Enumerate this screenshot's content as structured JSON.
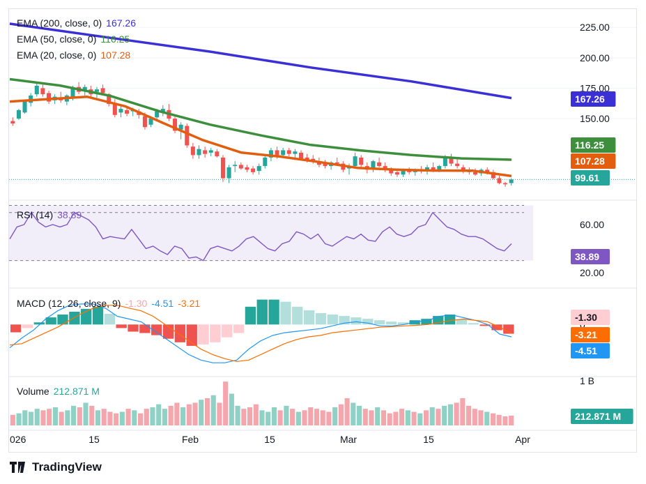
{
  "colors": {
    "ema200": "#3b2fd6",
    "ema50": "#3d8f3d",
    "ema20": "#e35d0e",
    "up": "#26a69a",
    "down": "#ef5350",
    "up_vol": "#8fd1c4",
    "down_vol": "#f4a6ad",
    "macd_line": "#2962ff",
    "signal_line": "#ff6d00",
    "rsi_line": "#7e57c2",
    "rsi_band": "#ede7f6",
    "price_line": "#26a69a",
    "grid": "#f0f3fa"
  },
  "price_panel": {
    "ema200_label": "EMA (200, close, 0)",
    "ema200_value": "167.26",
    "ema50_label": "EMA (50, close, 0)",
    "ema50_value": "116.25",
    "ema20_label": "EMA (20, close, 0)",
    "ema20_value": "107.28",
    "tag_ema200": "167.26",
    "tag_ema50": "116.25",
    "tag_ema20": "107.28",
    "tag_price": "99.61"
  },
  "rsi_panel": {
    "label": "RSI (14)",
    "value": "38.89",
    "tag": "38.89"
  },
  "macd_panel": {
    "label": "MACD (12, 26, close, 9)",
    "hist_value": "-1.30",
    "macd_value": "-4.51",
    "signal_value": "-3.21",
    "tag_hist": "-1.30",
    "tag_signal": "-3.21",
    "tag_macd": "-4.51",
    "axis_zero": "0"
  },
  "volume_panel": {
    "label": "Volume",
    "value": "212.871 M",
    "tag": "212.871 M",
    "axis_top": "1 B"
  },
  "time_axis": [
    "026",
    "15",
    "Feb",
    "15",
    "Mar",
    "15",
    "Apr"
  ],
  "brand": "TradingView",
  "chart_data": {
    "type": "candlestick",
    "price_axis": {
      "ticks": [
        "225.00",
        "200.00",
        "175.00",
        "150.00"
      ],
      "ylim": [
        87,
        236
      ]
    },
    "rsi_axis": {
      "ticks": [
        "60.00",
        "20.00"
      ],
      "ylim": [
        10,
        78
      ],
      "band": [
        30,
        70
      ]
    },
    "ema200": [
      228.0,
      216.4,
      205.0,
      192.0,
      180.6,
      166.9
    ],
    "ema50": [
      182.4,
      177.2,
      168.7,
      155.8,
      145.0,
      136.2,
      128.4,
      123.8,
      120.1,
      117.3,
      116.2
    ],
    "ema20": [
      164.0,
      166.0,
      168.0,
      160.0,
      146.0,
      132.4,
      122.1,
      118.8,
      114.4,
      109.5,
      108.1,
      107.3,
      107.2,
      102.8
    ],
    "candles": [
      {
        "o": 148,
        "h": 151,
        "l": 144,
        "c": 146
      },
      {
        "o": 150,
        "h": 158,
        "l": 149,
        "c": 157
      },
      {
        "o": 155,
        "h": 165,
        "l": 154,
        "c": 164
      },
      {
        "o": 163,
        "h": 171,
        "l": 160,
        "c": 169
      },
      {
        "o": 170,
        "h": 180,
        "l": 168,
        "c": 177
      },
      {
        "o": 175,
        "h": 178,
        "l": 168,
        "c": 170
      },
      {
        "o": 171,
        "h": 173,
        "l": 162,
        "c": 164
      },
      {
        "o": 165,
        "h": 170,
        "l": 162,
        "c": 168
      },
      {
        "o": 167,
        "h": 172,
        "l": 163,
        "c": 165
      },
      {
        "o": 164,
        "h": 170,
        "l": 161,
        "c": 169
      },
      {
        "o": 168,
        "h": 177,
        "l": 165,
        "c": 175
      },
      {
        "o": 176,
        "h": 180,
        "l": 170,
        "c": 172
      },
      {
        "o": 173,
        "h": 178,
        "l": 169,
        "c": 176
      },
      {
        "o": 174,
        "h": 177,
        "l": 168,
        "c": 170
      },
      {
        "o": 172,
        "h": 176,
        "l": 167,
        "c": 174
      },
      {
        "o": 175,
        "h": 178,
        "l": 169,
        "c": 171
      },
      {
        "o": 170,
        "h": 171,
        "l": 160,
        "c": 162
      },
      {
        "o": 163,
        "h": 166,
        "l": 151,
        "c": 153
      },
      {
        "o": 155,
        "h": 160,
        "l": 151,
        "c": 158
      },
      {
        "o": 157,
        "h": 160,
        "l": 152,
        "c": 154
      },
      {
        "o": 156,
        "h": 159,
        "l": 152,
        "c": 157
      },
      {
        "o": 156,
        "h": 158,
        "l": 150,
        "c": 153
      },
      {
        "o": 152,
        "h": 155,
        "l": 141,
        "c": 143
      },
      {
        "o": 145,
        "h": 152,
        "l": 143,
        "c": 150
      },
      {
        "o": 151,
        "h": 158,
        "l": 148,
        "c": 156
      },
      {
        "o": 155,
        "h": 161,
        "l": 152,
        "c": 158
      },
      {
        "o": 157,
        "h": 162,
        "l": 148,
        "c": 150
      },
      {
        "o": 150,
        "h": 152,
        "l": 138,
        "c": 140
      },
      {
        "o": 141,
        "h": 147,
        "l": 133,
        "c": 145
      },
      {
        "o": 144,
        "h": 146,
        "l": 126,
        "c": 128
      },
      {
        "o": 127,
        "h": 130,
        "l": 117,
        "c": 120
      },
      {
        "o": 120,
        "h": 128,
        "l": 117,
        "c": 125
      },
      {
        "o": 124,
        "h": 127,
        "l": 118,
        "c": 121
      },
      {
        "o": 122,
        "h": 126,
        "l": 119,
        "c": 124
      },
      {
        "o": 123,
        "h": 125,
        "l": 118,
        "c": 119
      },
      {
        "o": 118,
        "h": 120,
        "l": 98,
        "c": 101
      },
      {
        "o": 101,
        "h": 112,
        "l": 97,
        "c": 110
      },
      {
        "o": 111,
        "h": 115,
        "l": 106,
        "c": 112
      },
      {
        "o": 112,
        "h": 114,
        "l": 108,
        "c": 109
      },
      {
        "o": 110,
        "h": 112,
        "l": 106,
        "c": 108
      },
      {
        "o": 109,
        "h": 111,
        "l": 104,
        "c": 106
      },
      {
        "o": 107,
        "h": 113,
        "l": 104,
        "c": 111
      },
      {
        "o": 111,
        "h": 120,
        "l": 109,
        "c": 118
      },
      {
        "o": 118,
        "h": 126,
        "l": 115,
        "c": 124
      },
      {
        "o": 124,
        "h": 127,
        "l": 117,
        "c": 119
      },
      {
        "o": 120,
        "h": 126,
        "l": 118,
        "c": 124
      },
      {
        "o": 124,
        "h": 126,
        "l": 119,
        "c": 121
      },
      {
        "o": 121,
        "h": 125,
        "l": 118,
        "c": 123
      },
      {
        "o": 122,
        "h": 124,
        "l": 116,
        "c": 117
      },
      {
        "o": 118,
        "h": 121,
        "l": 114,
        "c": 116
      },
      {
        "o": 117,
        "h": 120,
        "l": 113,
        "c": 115
      },
      {
        "o": 114,
        "h": 118,
        "l": 110,
        "c": 112
      },
      {
        "o": 113,
        "h": 116,
        "l": 109,
        "c": 111
      },
      {
        "o": 111,
        "h": 115,
        "l": 108,
        "c": 114
      },
      {
        "o": 114,
        "h": 118,
        "l": 111,
        "c": 113
      },
      {
        "o": 113,
        "h": 115,
        "l": 106,
        "c": 108
      },
      {
        "o": 109,
        "h": 113,
        "l": 104,
        "c": 111
      },
      {
        "o": 111,
        "h": 122,
        "l": 109,
        "c": 119
      },
      {
        "o": 118,
        "h": 120,
        "l": 110,
        "c": 112
      },
      {
        "o": 111,
        "h": 114,
        "l": 105,
        "c": 108
      },
      {
        "o": 109,
        "h": 116,
        "l": 106,
        "c": 115
      },
      {
        "o": 114,
        "h": 118,
        "l": 110,
        "c": 111
      },
      {
        "o": 111,
        "h": 114,
        "l": 106,
        "c": 109
      },
      {
        "o": 108,
        "h": 110,
        "l": 103,
        "c": 105
      },
      {
        "o": 106,
        "h": 108,
        "l": 102,
        "c": 104
      },
      {
        "o": 104,
        "h": 109,
        "l": 102,
        "c": 107
      },
      {
        "o": 107,
        "h": 110,
        "l": 104,
        "c": 106
      },
      {
        "o": 106,
        "h": 109,
        "l": 103,
        "c": 108
      },
      {
        "o": 108,
        "h": 111,
        "l": 105,
        "c": 107
      },
      {
        "o": 107,
        "h": 112,
        "l": 104,
        "c": 110
      },
      {
        "o": 110,
        "h": 114,
        "l": 106,
        "c": 108
      },
      {
        "o": 108,
        "h": 112,
        "l": 106,
        "c": 111
      },
      {
        "o": 111,
        "h": 120,
        "l": 109,
        "c": 118
      },
      {
        "o": 118,
        "h": 121,
        "l": 111,
        "c": 113
      },
      {
        "o": 113,
        "h": 117,
        "l": 109,
        "c": 111
      },
      {
        "o": 110,
        "h": 112,
        "l": 105,
        "c": 107
      },
      {
        "o": 107,
        "h": 110,
        "l": 104,
        "c": 106
      },
      {
        "o": 106,
        "h": 109,
        "l": 103,
        "c": 104
      },
      {
        "o": 105,
        "h": 109,
        "l": 103,
        "c": 108
      },
      {
        "o": 108,
        "h": 110,
        "l": 104,
        "c": 105
      },
      {
        "o": 106,
        "h": 108,
        "l": 100,
        "c": 101
      },
      {
        "o": 101,
        "h": 103,
        "l": 96,
        "c": 97
      },
      {
        "o": 97,
        "h": 98,
        "l": 94,
        "c": 96
      },
      {
        "o": 97,
        "h": 101,
        "l": 95,
        "c": 100
      }
    ],
    "rsi": [
      48,
      58,
      60,
      70,
      62,
      58,
      60,
      58,
      60,
      70,
      67,
      64,
      58,
      48,
      50,
      49,
      48,
      56,
      48,
      40,
      42,
      38,
      35,
      42,
      40,
      32,
      33,
      30,
      40,
      42,
      40,
      38,
      42,
      48,
      50,
      45,
      40,
      38,
      44,
      46,
      54,
      52,
      48,
      52,
      44,
      42,
      46,
      50,
      48,
      52,
      47,
      46,
      54,
      58,
      52,
      50,
      52,
      58,
      60,
      70,
      64,
      58,
      56,
      52,
      50,
      50,
      48,
      44,
      40,
      38,
      44
    ],
    "macd": [
      -8.5,
      -5,
      -2,
      2,
      5,
      7,
      7.5,
      7.5,
      6,
      3,
      2,
      1,
      -2,
      -5,
      -8,
      -11,
      -13,
      -14,
      -14,
      -13,
      -9,
      -6,
      -4,
      -3,
      -2.5,
      -2,
      -1.5,
      -0.5,
      0.5,
      1,
      0.5,
      -0.5,
      -0.5,
      0,
      1,
      1.5,
      3,
      3.5,
      2.5,
      1.5,
      0,
      -3.5,
      -4.5
    ],
    "signal": [
      -7.5,
      -7,
      -5,
      -3,
      -1,
      1.5,
      4,
      6,
      7,
      7,
      6,
      5,
      3,
      0,
      -3,
      -6,
      -9,
      -11,
      -12.5,
      -13.5,
      -13,
      -11,
      -9,
      -7,
      -5.5,
      -4.5,
      -4,
      -3,
      -2.5,
      -2,
      -1.5,
      -1,
      -0.8,
      -0.5,
      -0.3,
      0,
      0.8,
      1.5,
      2.0,
      1.5,
      1.0,
      -1.0,
      -3.2
    ],
    "macd_hist": [
      -1.1,
      -0.5,
      0.3,
      1.0,
      1.4,
      1.8,
      2.2,
      2.5,
      1.5,
      -0.5,
      -1.0,
      -1.2,
      -1.5,
      -2.0,
      -2.5,
      -3.0,
      -2.8,
      -2.5,
      -1.8,
      -1.2,
      2.5,
      3.5,
      3.5,
      3.2,
      2.5,
      2.0,
      1.6,
      1.4,
      1.2,
      1.0,
      0.8,
      0.6,
      0.4,
      0.3,
      0.6,
      0.8,
      1.2,
      1.4,
      0.7,
      0.2,
      -0.2,
      -0.8,
      -1.3
    ],
    "volume": [
      0.14,
      0.16,
      0.2,
      0.18,
      0.22,
      0.2,
      0.22,
      0.24,
      0.18,
      0.2,
      0.26,
      0.24,
      0.3,
      0.26,
      0.2,
      0.22,
      0.18,
      0.16,
      0.18,
      0.22,
      0.2,
      0.16,
      0.22,
      0.24,
      0.28,
      0.22,
      0.26,
      0.3,
      0.24,
      0.28,
      0.3,
      0.34,
      0.36,
      0.4,
      0.3,
      0.58,
      0.42,
      0.26,
      0.22,
      0.24,
      0.28,
      0.2,
      0.18,
      0.24,
      0.2,
      0.26,
      0.22,
      0.18,
      0.2,
      0.24,
      0.22,
      0.2,
      0.18,
      0.24,
      0.28,
      0.36,
      0.3,
      0.26,
      0.22,
      0.2,
      0.24,
      0.2,
      0.16,
      0.18,
      0.22,
      0.2,
      0.18,
      0.16,
      0.2,
      0.24,
      0.22,
      0.26,
      0.28,
      0.3,
      0.36,
      0.26,
      0.22,
      0.2,
      0.18,
      0.16,
      0.14,
      0.12,
      0.13
    ],
    "volume_axis": {
      "ylim": [
        0,
        1000
      ]
    }
  }
}
